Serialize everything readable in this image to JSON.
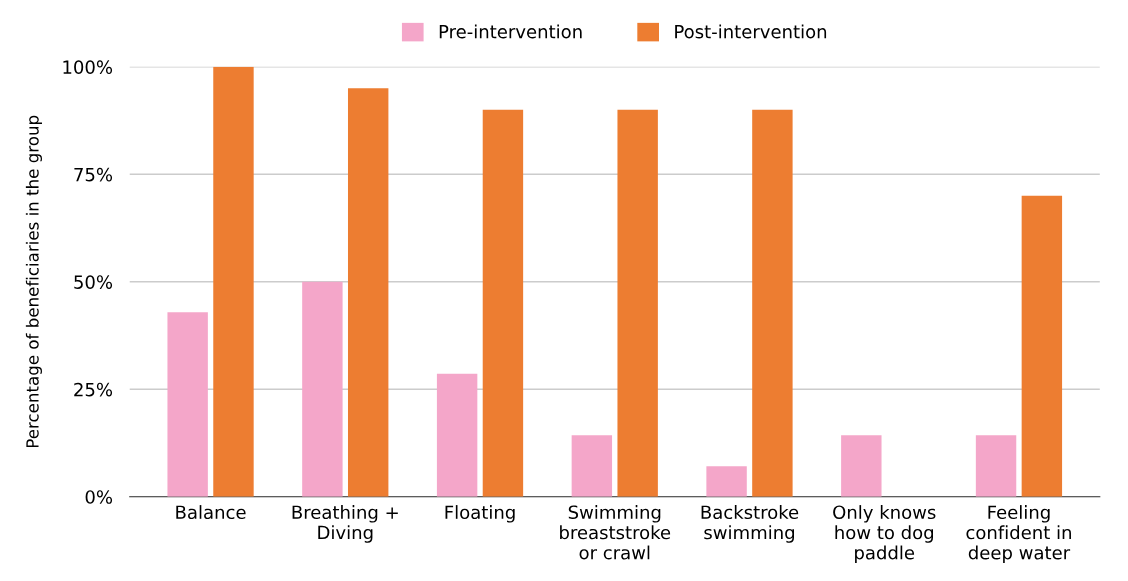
{
  "chart_data": {
    "type": "bar",
    "ylabel": "Percentage of beneficiaries in the group",
    "categories": [
      "Balance",
      "Breathing +\nDiving",
      "Floating",
      "Swimming\nbreaststroke\nor crawl",
      "Backstroke\nswimming",
      "Only knows\nhow to dog\npaddle",
      "Feeling\nconfident in\ndeep water"
    ],
    "series": [
      {
        "name": "Pre-intervention",
        "color": "#f4a6c9",
        "values": [
          42.9,
          50,
          28.6,
          14.3,
          7.1,
          14.3,
          14.3
        ]
      },
      {
        "name": "Post-intervention",
        "color": "#ed7d31",
        "values": [
          100,
          95,
          90,
          90,
          90,
          0,
          70
        ]
      }
    ],
    "ylim": [
      0,
      100
    ],
    "yticks": [
      {
        "value": 0,
        "label": "0%"
      },
      {
        "value": 25,
        "label": "25%"
      },
      {
        "value": 50,
        "label": "50%"
      },
      {
        "value": 75,
        "label": "75%"
      },
      {
        "value": 100,
        "label": "100%"
      }
    ],
    "grid": "y",
    "legend": "top"
  }
}
